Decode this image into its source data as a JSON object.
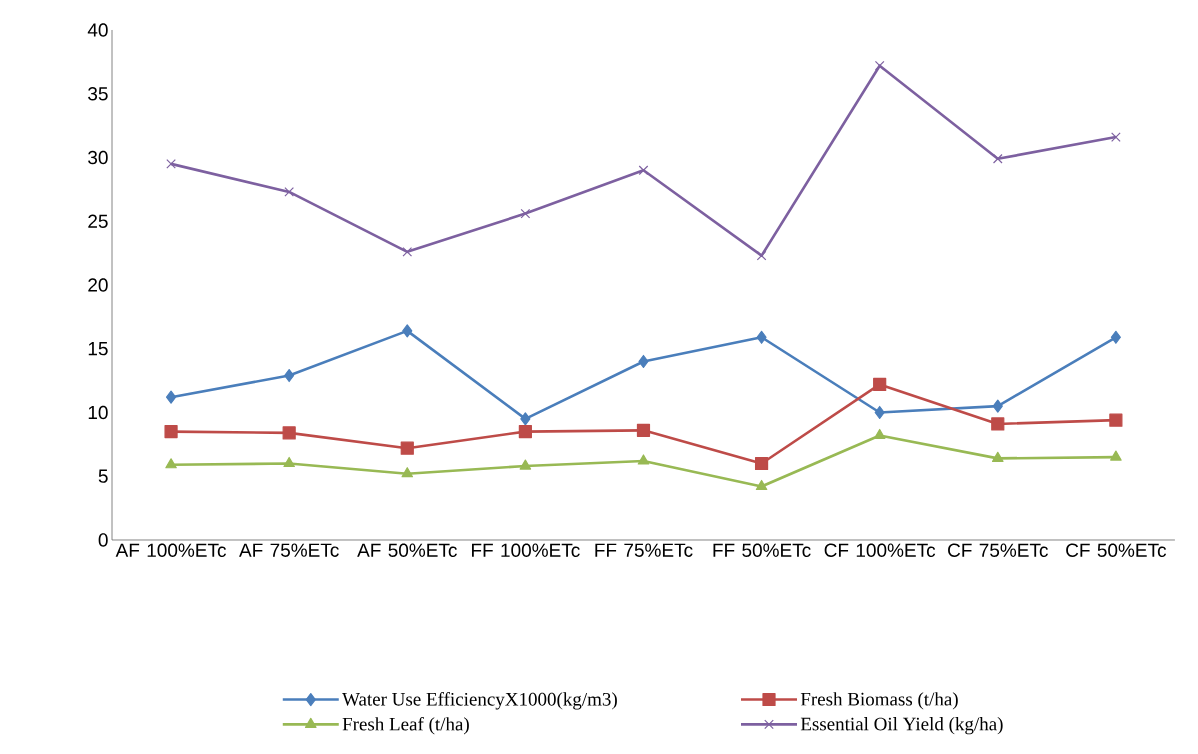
{
  "chart_data": {
    "type": "line",
    "categories": [
      "AF 100%ETc",
      "AF 75%ETc",
      "AF 50%ETc",
      "FF 100%ETc",
      "FF 75%ETc",
      "FF 50%ETc",
      "CF 100%ETc",
      "CF 75%ETc",
      "CF 50%ETc"
    ],
    "series": [
      {
        "name": "Water Use EfficiencyX1000(kg/m3)",
        "color": "#4a7ebb",
        "marker": "diamond",
        "values": [
          11.2,
          12.9,
          16.4,
          9.5,
          14.0,
          15.9,
          10.0,
          10.5,
          15.9
        ]
      },
      {
        "name": "Fresh Biomass (t/ha)",
        "color": "#be4b48",
        "marker": "square",
        "values": [
          8.5,
          8.4,
          7.2,
          8.5,
          8.6,
          6.0,
          12.2,
          9.1,
          9.4
        ]
      },
      {
        "name": "Fresh Leaf  (t/ha)",
        "color": "#98b954",
        "marker": "triangle",
        "values": [
          5.9,
          6.0,
          5.2,
          5.8,
          6.2,
          4.2,
          8.2,
          6.4,
          6.5
        ]
      },
      {
        "name": "Essential Oil Yield (kg/ha)",
        "color": "#7d60a0",
        "marker": "cross",
        "values": [
          29.5,
          27.3,
          22.6,
          25.6,
          29.0,
          22.3,
          37.2,
          29.9,
          31.6
        ]
      }
    ],
    "ylim": [
      0,
      40
    ],
    "yticks": [
      0,
      5,
      10,
      15,
      20,
      25,
      30,
      35,
      40
    ],
    "grid": false,
    "legend": "bottom",
    "line_style": "solid"
  }
}
